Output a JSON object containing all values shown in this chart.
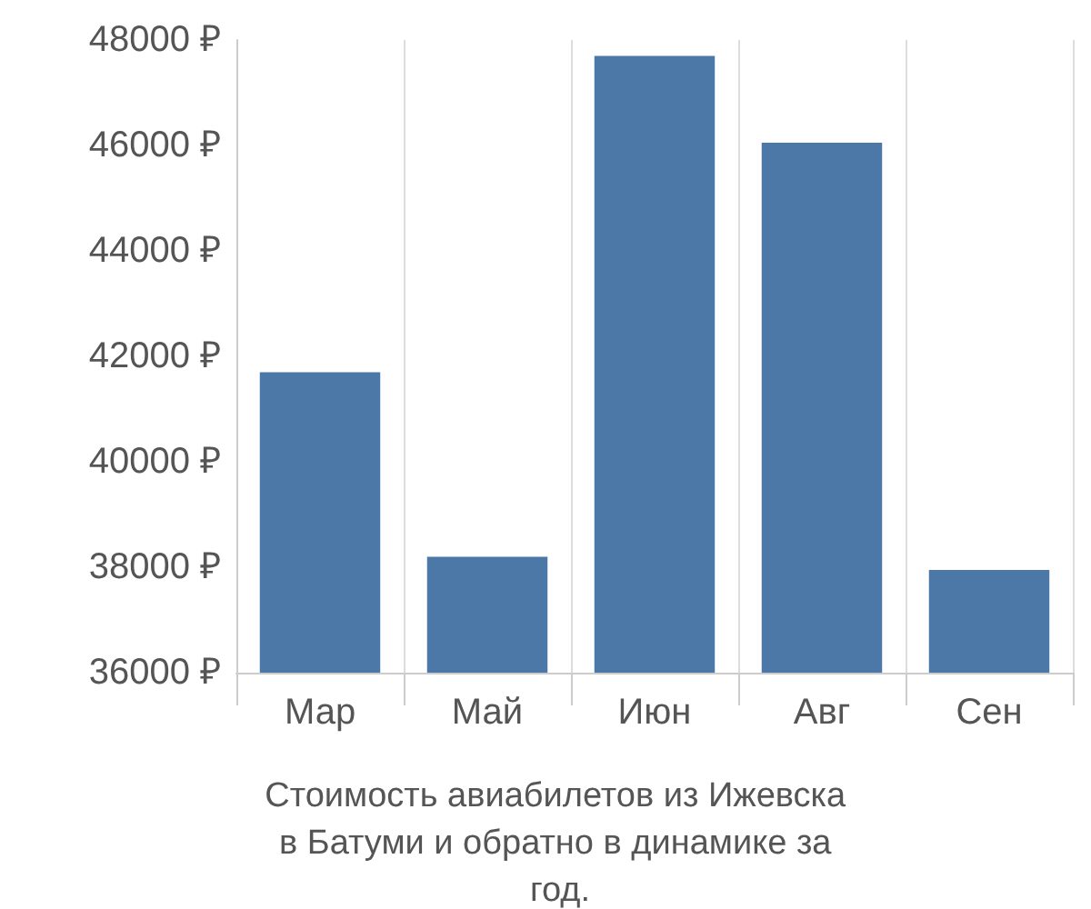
{
  "chart_data": {
    "type": "bar",
    "title": "Стоимость авиабилетов из Ижевска в Батуми и обратно в динамике за год.",
    "categories": [
      "Мар",
      "Май",
      "Июн",
      "Авг",
      "Сен"
    ],
    "values": [
      41700,
      38200,
      47700,
      46050,
      37950
    ],
    "color": "#4c78a8",
    "ylim": [
      36000,
      48000
    ],
    "yticks": [
      {
        "value": 36000,
        "label": "36000 ₽"
      },
      {
        "value": 38000,
        "label": "38000 ₽"
      },
      {
        "value": 40000,
        "label": "40000 ₽"
      },
      {
        "value": 42000,
        "label": "42000 ₽"
      },
      {
        "value": 44000,
        "label": "44000 ₽"
      },
      {
        "value": 46000,
        "label": "46000 ₽"
      },
      {
        "value": 48000,
        "label": "48000 ₽"
      }
    ],
    "grid": "x"
  }
}
